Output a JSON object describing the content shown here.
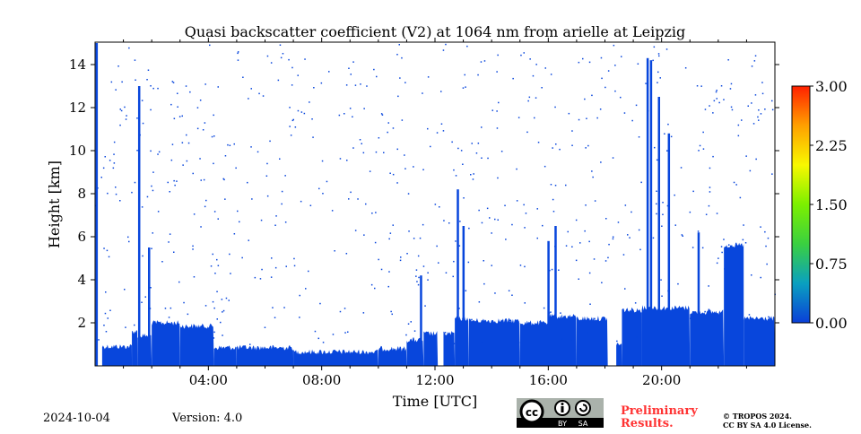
{
  "chart_data": {
    "type": "heatmap",
    "title": "Quasi backscatter coefficient (V2) at 1064 nm from arielle at Leipzig",
    "xlabel": "Time [UTC]",
    "ylabel": "Height [km]",
    "xlim": [
      0,
      24
    ],
    "ylim": [
      0,
      15
    ],
    "x_ticks": [
      {
        "v": 4,
        "label": "04:00"
      },
      {
        "v": 8,
        "label": "08:00"
      },
      {
        "v": 12,
        "label": "12:00"
      },
      {
        "v": 16,
        "label": "16:00"
      },
      {
        "v": 20,
        "label": "20:00"
      }
    ],
    "y_ticks": [
      {
        "v": 2,
        "label": "2"
      },
      {
        "v": 4,
        "label": "4"
      },
      {
        "v": 6,
        "label": "6"
      },
      {
        "v": 8,
        "label": "8"
      },
      {
        "v": 10,
        "label": "10"
      },
      {
        "v": 12,
        "label": "12"
      },
      {
        "v": 14,
        "label": "14"
      }
    ],
    "colorbar": {
      "range": [
        0,
        3
      ],
      "ticks": [
        "0.00",
        "0.75",
        "1.50",
        "2.25",
        "3.00"
      ],
      "colors": [
        "#0a3fd8",
        "#0aa0c0",
        "#3ad040",
        "#7cf000",
        "#f8f800",
        "#ffa000",
        "#ff2000"
      ]
    },
    "signal_color": "#0846dc",
    "layer_top_km": [
      [
        0.0,
        0.25,
        0.0
      ],
      [
        0.25,
        1.3,
        0.9
      ],
      [
        1.3,
        1.5,
        1.6
      ],
      [
        1.5,
        2.0,
        1.4
      ],
      [
        2.0,
        3.0,
        2.0
      ],
      [
        3.0,
        4.2,
        1.85
      ],
      [
        4.2,
        5.0,
        0.85
      ],
      [
        5.0,
        7.0,
        0.85
      ],
      [
        7.0,
        10.0,
        0.65
      ],
      [
        10.0,
        11.0,
        0.8
      ],
      [
        11.0,
        11.6,
        1.2
      ],
      [
        11.6,
        12.1,
        1.5
      ],
      [
        12.1,
        12.3,
        0.0
      ],
      [
        12.3,
        12.7,
        1.5
      ],
      [
        12.7,
        13.2,
        2.2
      ],
      [
        13.2,
        15.0,
        2.1
      ],
      [
        15.0,
        16.0,
        2.0
      ],
      [
        16.0,
        17.0,
        2.3
      ],
      [
        17.0,
        18.1,
        2.2
      ],
      [
        18.1,
        18.4,
        0.0
      ],
      [
        18.4,
        18.6,
        1.0
      ],
      [
        18.6,
        19.3,
        2.6
      ],
      [
        19.3,
        21.0,
        2.7
      ],
      [
        21.0,
        22.2,
        2.5
      ],
      [
        22.2,
        22.9,
        5.6
      ],
      [
        22.9,
        24.0,
        2.2
      ]
    ],
    "spikes_km": [
      [
        0.05,
        15.0
      ],
      [
        1.55,
        13.0
      ],
      [
        1.9,
        5.5
      ],
      [
        11.5,
        4.2
      ],
      [
        12.8,
        8.2
      ],
      [
        13.0,
        6.5
      ],
      [
        16.0,
        5.8
      ],
      [
        16.25,
        6.5
      ],
      [
        19.5,
        14.3
      ],
      [
        19.62,
        14.2
      ],
      [
        19.9,
        12.5
      ],
      [
        20.25,
        10.8
      ],
      [
        21.3,
        6.2
      ],
      [
        22.45,
        5.6
      ]
    ]
  },
  "footer": {
    "date": "2024-10-04",
    "version": "Version: 4.0",
    "preliminary_line1": "Preliminary",
    "preliminary_line2": "Results.",
    "copyright_line1": "© TROPOS 2024.",
    "copyright_line2": "CC BY SA 4.0 License.",
    "cc_label": "cc",
    "by_label": "BY",
    "sa_label": "SA"
  }
}
